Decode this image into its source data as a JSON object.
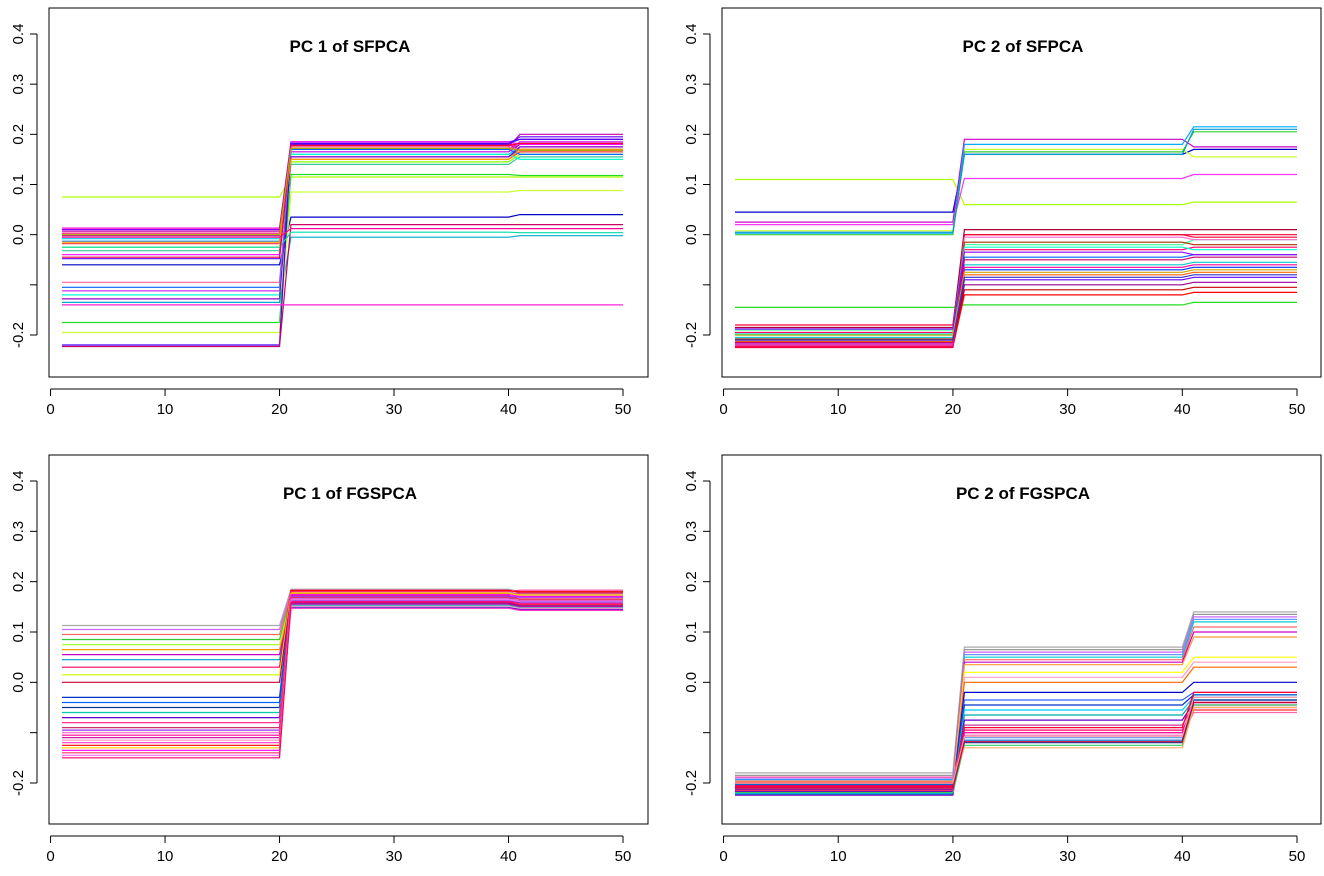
{
  "figure": {
    "panels": [
      {
        "title": "PC 1 of SFPCA"
      },
      {
        "title": "PC 2 of SFPCA"
      },
      {
        "title": "PC 1 of FGSPCA"
      },
      {
        "title": "PC 2 of FGSPCA"
      }
    ]
  },
  "chart_data": [
    {
      "type": "line",
      "title": "PC 1 of SFPCA",
      "xlabel": "",
      "ylabel": "",
      "xlim": [
        1,
        50
      ],
      "ylim": [
        -0.28,
        0.42
      ],
      "xticks": [
        0,
        10,
        20,
        30,
        40,
        50
      ],
      "yticks": [
        -0.2,
        -0.1,
        0.0,
        0.1,
        0.2,
        0.3,
        0.4
      ],
      "ytick_labels": [
        "-0.2",
        "",
        "0.0",
        "0.1",
        "0.2",
        "0.3",
        "0.4"
      ],
      "segments": [
        [
          1,
          20
        ],
        [
          21,
          40
        ],
        [
          41,
          50
        ]
      ],
      "series_note": "each line is constant within segments 1-20, 21-40, 41-50",
      "series_levels": [
        [
          0.075,
          0.115,
          0.115
        ],
        [
          0.013,
          0.18,
          0.17
        ],
        [
          0.01,
          0.185,
          0.19
        ],
        [
          0.007,
          0.175,
          0.2
        ],
        [
          0.003,
          0.17,
          0.185
        ],
        [
          -0.002,
          0.165,
          0.18
        ],
        [
          -0.008,
          0.16,
          0.175
        ],
        [
          -0.013,
          0.155,
          0.17
        ],
        [
          -0.018,
          0.15,
          0.165
        ],
        [
          -0.025,
          0.145,
          0.16
        ],
        [
          -0.032,
          0.14,
          0.155
        ],
        [
          -0.04,
          0.185,
          0.18
        ],
        [
          -0.048,
          0.18,
          0.195
        ],
        [
          -0.06,
          0.035,
          0.04
        ],
        [
          -0.095,
          0.175,
          0.17
        ],
        [
          -0.105,
          0.17,
          0.16
        ],
        [
          -0.112,
          0.165,
          0.185
        ],
        [
          -0.12,
          0.16,
          0.15
        ],
        [
          -0.128,
          0.155,
          0.175
        ],
        [
          -0.135,
          -0.005,
          -0.002
        ],
        [
          -0.175,
          0.12,
          0.118
        ],
        [
          -0.195,
          0.085,
          0.088
        ],
        [
          -0.22,
          0.182,
          0.19
        ],
        [
          -0.223,
          0.02,
          0.02
        ],
        [
          -0.015,
          0.15,
          0.17
        ],
        [
          -0.005,
          0.012,
          0.012
        ],
        [
          -0.14,
          -0.14,
          -0.14
        ],
        [
          -0.025,
          0.005,
          0.004
        ],
        [
          -0.045,
          0.178,
          0.182
        ],
        [
          0.0,
          0.172,
          0.168
        ]
      ],
      "colors": [
        "#aaff00",
        "#ff00cc",
        "#8800ff",
        "#cc00aa",
        "#ff0066",
        "#aa0088",
        "#00ccff",
        "#0088ff",
        "#ff3333",
        "#88ff00",
        "#33cc99",
        "#ff00ff",
        "#6600ff",
        "#0000cc",
        "#ff6699",
        "#0066ff",
        "#cc33ff",
        "#00ffcc",
        "#9900cc",
        "#00aacc",
        "#22dd22",
        "#ccff33",
        "#4400ff",
        "#cc0066",
        "#ff9900",
        "#ff0099",
        "#ff22dd",
        "#00ddaa",
        "#ff0033",
        "#aaaa00"
      ]
    },
    {
      "type": "line",
      "title": "PC 2 of SFPCA",
      "xlabel": "",
      "ylabel": "",
      "xlim": [
        1,
        50
      ],
      "ylim": [
        -0.28,
        0.42
      ],
      "xticks": [
        0,
        10,
        20,
        30,
        40,
        50
      ],
      "yticks": [
        -0.2,
        -0.1,
        0.0,
        0.1,
        0.2,
        0.3,
        0.4
      ],
      "ytick_labels": [
        "-0.2",
        "",
        "0.0",
        "0.1",
        "0.2",
        "0.3",
        "0.4"
      ],
      "segments": [
        [
          1,
          20
        ],
        [
          21,
          40
        ],
        [
          41,
          50
        ]
      ],
      "series_levels": [
        [
          0.11,
          0.06,
          0.065
        ],
        [
          0.045,
          0.16,
          0.17
        ],
        [
          0.025,
          0.19,
          0.175
        ],
        [
          0.02,
          0.112,
          0.12
        ],
        [
          0.008,
          0.17,
          0.155
        ],
        [
          0.003,
          0.18,
          0.215
        ],
        [
          0.0,
          0.165,
          0.205
        ],
        [
          0.005,
          0.16,
          0.21
        ],
        [
          -0.145,
          -0.14,
          -0.135
        ],
        [
          -0.18,
          0.0,
          -0.005
        ],
        [
          -0.185,
          0.01,
          0.01
        ],
        [
          -0.19,
          -0.02,
          -0.01
        ],
        [
          -0.195,
          -0.03,
          -0.025
        ],
        [
          -0.2,
          -0.045,
          -0.04
        ],
        [
          -0.205,
          -0.06,
          -0.055
        ],
        [
          -0.21,
          -0.07,
          -0.065
        ],
        [
          -0.213,
          -0.08,
          -0.075
        ],
        [
          -0.216,
          -0.09,
          -0.085
        ],
        [
          -0.219,
          -0.1,
          -0.095
        ],
        [
          -0.222,
          -0.11,
          -0.105
        ],
        [
          -0.224,
          -0.12,
          -0.115
        ],
        [
          -0.225,
          0.0,
          0.0
        ],
        [
          -0.218,
          -0.005,
          -0.01
        ],
        [
          -0.208,
          -0.015,
          -0.02
        ],
        [
          -0.198,
          -0.025,
          -0.03
        ],
        [
          -0.188,
          -0.035,
          -0.04
        ],
        [
          -0.215,
          -0.05,
          -0.045
        ],
        [
          -0.222,
          -0.065,
          -0.06
        ],
        [
          -0.2,
          -0.075,
          -0.07
        ],
        [
          -0.21,
          -0.085,
          -0.08
        ]
      ],
      "colors": [
        "#aaff00",
        "#0000cc",
        "#cc00cc",
        "#ff33ff",
        "#ccff33",
        "#00aaff",
        "#33cc33",
        "#0099cc",
        "#22dd22",
        "#ff0033",
        "#aa0033",
        "#33ff99",
        "#ff0066",
        "#0066ff",
        "#00cccc",
        "#0033ff",
        "#ff6600",
        "#6600ff",
        "#990099",
        "#cc0000",
        "#ff0000",
        "#ee0033",
        "#ff66cc",
        "#aa3300",
        "#00ffcc",
        "#9900ff",
        "#cc0066",
        "#ff0099",
        "#ccaa00",
        "#3333cc"
      ]
    },
    {
      "type": "line",
      "title": "PC 1 of FGSPCA",
      "xlabel": "",
      "ylabel": "",
      "xlim": [
        1,
        50
      ],
      "ylim": [
        -0.28,
        0.42
      ],
      "xticks": [
        0,
        10,
        20,
        30,
        40,
        50
      ],
      "yticks": [
        -0.2,
        -0.1,
        0.0,
        0.1,
        0.2,
        0.3,
        0.4
      ],
      "ytick_labels": [
        "-0.2",
        "",
        "0.0",
        "0.1",
        "0.2",
        "0.3",
        "0.4"
      ],
      "segments": [
        [
          1,
          20
        ],
        [
          21,
          40
        ],
        [
          41,
          50
        ]
      ],
      "series_levels": [
        [
          0.113,
          0.185,
          0.18
        ],
        [
          0.105,
          0.18,
          0.175
        ],
        [
          0.095,
          0.175,
          0.17
        ],
        [
          0.085,
          0.17,
          0.165
        ],
        [
          0.075,
          0.165,
          0.16
        ],
        [
          0.065,
          0.16,
          0.155
        ],
        [
          0.055,
          0.155,
          0.15
        ],
        [
          0.045,
          0.15,
          0.145
        ],
        [
          0.03,
          0.183,
          0.178
        ],
        [
          0.015,
          0.178,
          0.172
        ],
        [
          0.0,
          0.172,
          0.165
        ],
        [
          -0.03,
          0.168,
          0.162
        ],
        [
          -0.04,
          0.163,
          0.158
        ],
        [
          -0.05,
          0.158,
          0.152
        ],
        [
          -0.06,
          0.153,
          0.148
        ],
        [
          -0.07,
          0.148,
          0.145
        ],
        [
          -0.08,
          0.18,
          0.183
        ],
        [
          -0.09,
          0.176,
          0.177
        ],
        [
          -0.095,
          0.171,
          0.169
        ],
        [
          -0.1,
          0.166,
          0.163
        ],
        [
          -0.105,
          0.161,
          0.157
        ],
        [
          -0.11,
          0.156,
          0.151
        ],
        [
          -0.115,
          0.151,
          0.147
        ],
        [
          -0.12,
          0.147,
          0.143
        ],
        [
          -0.125,
          0.182,
          0.18
        ],
        [
          -0.13,
          0.177,
          0.174
        ],
        [
          -0.135,
          0.174,
          0.171
        ],
        [
          -0.14,
          0.169,
          0.166
        ],
        [
          -0.145,
          0.164,
          0.16
        ],
        [
          -0.15,
          0.159,
          0.154
        ]
      ],
      "colors": [
        "#aaaaaa",
        "#cc66ff",
        "#ff6666",
        "#33cc33",
        "#aaff33",
        "#ff9900",
        "#cc00cc",
        "#0099cc",
        "#ff0066",
        "#ccff00",
        "#cc0033",
        "#0033cc",
        "#0066ff",
        "#003399",
        "#00ccaa",
        "#6600cc",
        "#ff3399",
        "#cc3366",
        "#9933ff",
        "#ff66cc",
        "#ff0099",
        "#cc0099",
        "#ff99cc",
        "#ff33cc",
        "#ff0000",
        "#ffcc00",
        "#ff00ff",
        "#ff3366",
        "#ff66ff",
        "#ff0066"
      ]
    },
    {
      "type": "line",
      "title": "PC 2 of FGSPCA",
      "xlabel": "",
      "ylabel": "",
      "xlim": [
        1,
        50
      ],
      "ylim": [
        -0.28,
        0.42
      ],
      "xticks": [
        0,
        10,
        20,
        30,
        40,
        50
      ],
      "yticks": [
        -0.2,
        -0.1,
        0.0,
        0.1,
        0.2,
        0.3,
        0.4
      ],
      "ytick_labels": [
        "-0.2",
        "",
        "0.0",
        "0.1",
        "0.2",
        "0.3",
        "0.4"
      ],
      "segments": [
        [
          1,
          20
        ],
        [
          21,
          40
        ],
        [
          41,
          50
        ]
      ],
      "series_levels": [
        [
          -0.18,
          0.07,
          0.14
        ],
        [
          -0.185,
          0.065,
          0.135
        ],
        [
          -0.19,
          0.06,
          0.13
        ],
        [
          -0.195,
          0.055,
          0.125
        ],
        [
          -0.2,
          0.05,
          0.12
        ],
        [
          -0.202,
          0.045,
          0.11
        ],
        [
          -0.205,
          0.04,
          0.1
        ],
        [
          -0.207,
          0.035,
          0.09
        ],
        [
          -0.21,
          0.02,
          0.05
        ],
        [
          -0.212,
          0.01,
          0.04
        ],
        [
          -0.215,
          0.0,
          0.03
        ],
        [
          -0.217,
          -0.02,
          0.0
        ],
        [
          -0.22,
          -0.035,
          -0.02
        ],
        [
          -0.221,
          -0.045,
          -0.025
        ],
        [
          -0.222,
          -0.055,
          -0.03
        ],
        [
          -0.223,
          -0.065,
          -0.035
        ],
        [
          -0.224,
          -0.075,
          -0.04
        ],
        [
          -0.218,
          -0.085,
          -0.045
        ],
        [
          -0.208,
          -0.095,
          -0.05
        ],
        [
          -0.198,
          -0.1,
          -0.055
        ],
        [
          -0.188,
          -0.105,
          -0.06
        ],
        [
          -0.193,
          -0.11,
          -0.03
        ],
        [
          -0.203,
          -0.115,
          -0.025
        ],
        [
          -0.213,
          -0.12,
          -0.035
        ],
        [
          -0.219,
          -0.125,
          -0.045
        ],
        [
          -0.196,
          -0.13,
          -0.05
        ],
        [
          -0.206,
          -0.09,
          -0.02
        ],
        [
          -0.214,
          -0.1,
          -0.04
        ],
        [
          -0.2,
          -0.108,
          -0.03
        ],
        [
          -0.21,
          -0.118,
          -0.04
        ]
      ],
      "colors": [
        "#aaaaaa",
        "#999999",
        "#cc66ff",
        "#6699ff",
        "#00cccc",
        "#ff6666",
        "#cc00cc",
        "#ff9933",
        "#ffff00",
        "#ff99cc",
        "#ff6600",
        "#0000cc",
        "#3366ff",
        "#0033cc",
        "#00ccff",
        "#00aaaa",
        "#6600cc",
        "#cc3399",
        "#ff0066",
        "#ff3333",
        "#ff66aa",
        "#3399ff",
        "#0066cc",
        "#003399",
        "#33cc66",
        "#ffaa66",
        "#ff0033",
        "#ff00aa",
        "#ff99aa",
        "#cc0033"
      ]
    }
  ]
}
